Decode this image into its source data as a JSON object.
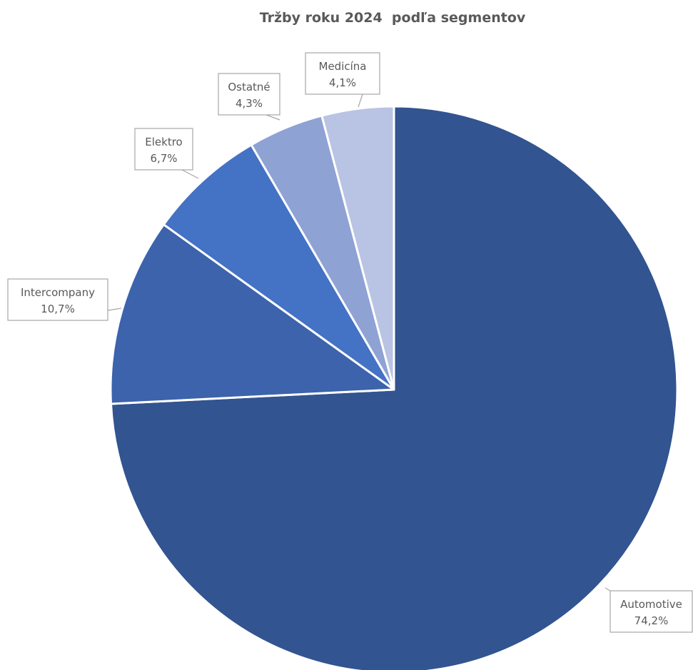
{
  "chart_data": {
    "type": "pie",
    "title": "Tržby roku 2024  podľa segmentov",
    "start_angle": "12 o'clock",
    "direction": "clockwise",
    "legend": "none",
    "slices": [
      {
        "name": "Automotive",
        "value": 74.2,
        "value_label": "74,2%",
        "color": "#325490"
      },
      {
        "name": "Intercompany",
        "value": 10.7,
        "value_label": "10,7%",
        "color": "#3c63ab"
      },
      {
        "name": "Elektro",
        "value": 6.7,
        "value_label": "6,7%",
        "color": "#4472c4"
      },
      {
        "name": "Ostatné",
        "value": 4.3,
        "value_label": "4,3%",
        "color": "#8fa2d4"
      },
      {
        "name": "Medicína",
        "value": 4.1,
        "value_label": "4,1%",
        "color": "#b9c3e3"
      }
    ]
  }
}
